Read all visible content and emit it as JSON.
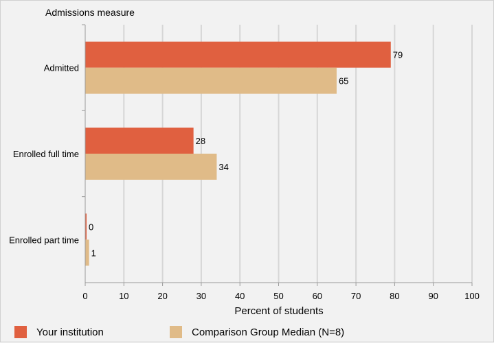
{
  "chart_data": {
    "type": "bar",
    "orientation": "horizontal",
    "ylabel": "Admissions measure",
    "xlabel": "Percent of students",
    "categories": [
      "Admitted",
      "Enrolled full time",
      "Enrolled part time"
    ],
    "series": [
      {
        "name": "Your institution",
        "color": "#e06040",
        "values": [
          79,
          28,
          0
        ]
      },
      {
        "name": "Comparison Group Median (N=8)",
        "color": "#e0bb88",
        "values": [
          65,
          34,
          1
        ]
      }
    ],
    "xlim": [
      0,
      100
    ],
    "xticks": [
      0,
      10,
      20,
      30,
      40,
      50,
      60,
      70,
      80,
      90,
      100
    ],
    "grid": true,
    "legend_position": "bottom"
  }
}
